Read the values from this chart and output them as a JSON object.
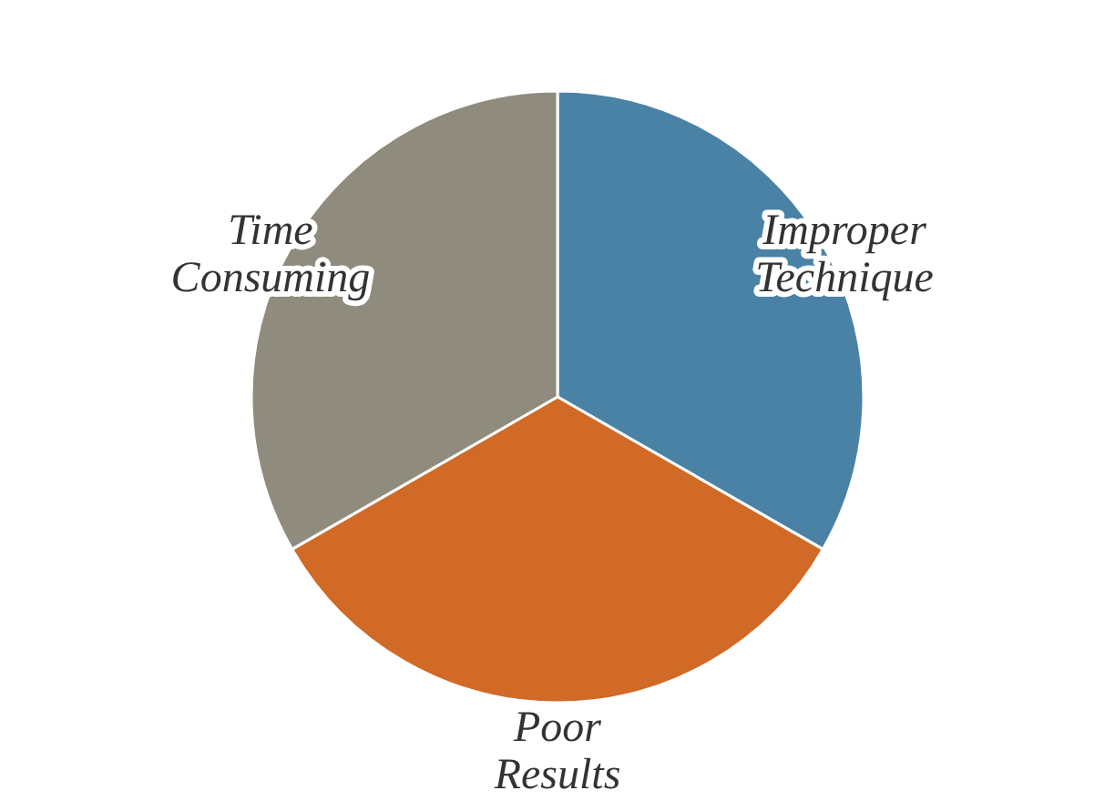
{
  "chart_data": {
    "type": "pie",
    "categories": [
      "Improper Technique",
      "Poor Results",
      "Time Consuming"
    ],
    "values": [
      33.3,
      33.4,
      33.3
    ],
    "colors": [
      "#4a82a6",
      "#d06a26",
      "#8f8b7d"
    ]
  }
}
